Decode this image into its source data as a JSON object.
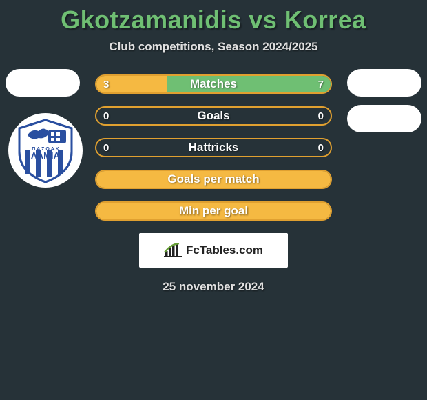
{
  "title": "Gkotzamanidis vs Korrea",
  "subtitle": "Club competitions, Season 2024/2025",
  "date_label": "25 november 2024",
  "footer_brand": "FcTables.com",
  "colors": {
    "bg": "#263238",
    "title": "#6fbf73",
    "bar_border": "#e0a030",
    "bar_left": "#f5b942",
    "bar_right": "#6fbf73",
    "text": "#ffffff"
  },
  "club_badge": {
    "text_top": "Π.Α.Σ Ο.Α.Κ",
    "text_main": "ΛΑΜΙΑ",
    "stripe_colors": [
      "#2a4fa0",
      "#ffffff"
    ]
  },
  "bars": [
    {
      "label": "Matches",
      "left": "3",
      "right": "7",
      "left_pct": 30,
      "right_pct": 70,
      "show_values": true,
      "split": true
    },
    {
      "label": "Goals",
      "left": "0",
      "right": "0",
      "left_pct": 0,
      "right_pct": 0,
      "show_values": true,
      "split": false
    },
    {
      "label": "Hattricks",
      "left": "0",
      "right": "0",
      "left_pct": 0,
      "right_pct": 0,
      "show_values": true,
      "split": false
    },
    {
      "label": "Goals per match",
      "left": "",
      "right": "",
      "left_pct": 0,
      "right_pct": 0,
      "show_values": false,
      "split": false,
      "full_orange": true
    },
    {
      "label": "Min per goal",
      "left": "",
      "right": "",
      "left_pct": 0,
      "right_pct": 0,
      "show_values": false,
      "split": false,
      "full_orange": true
    }
  ]
}
